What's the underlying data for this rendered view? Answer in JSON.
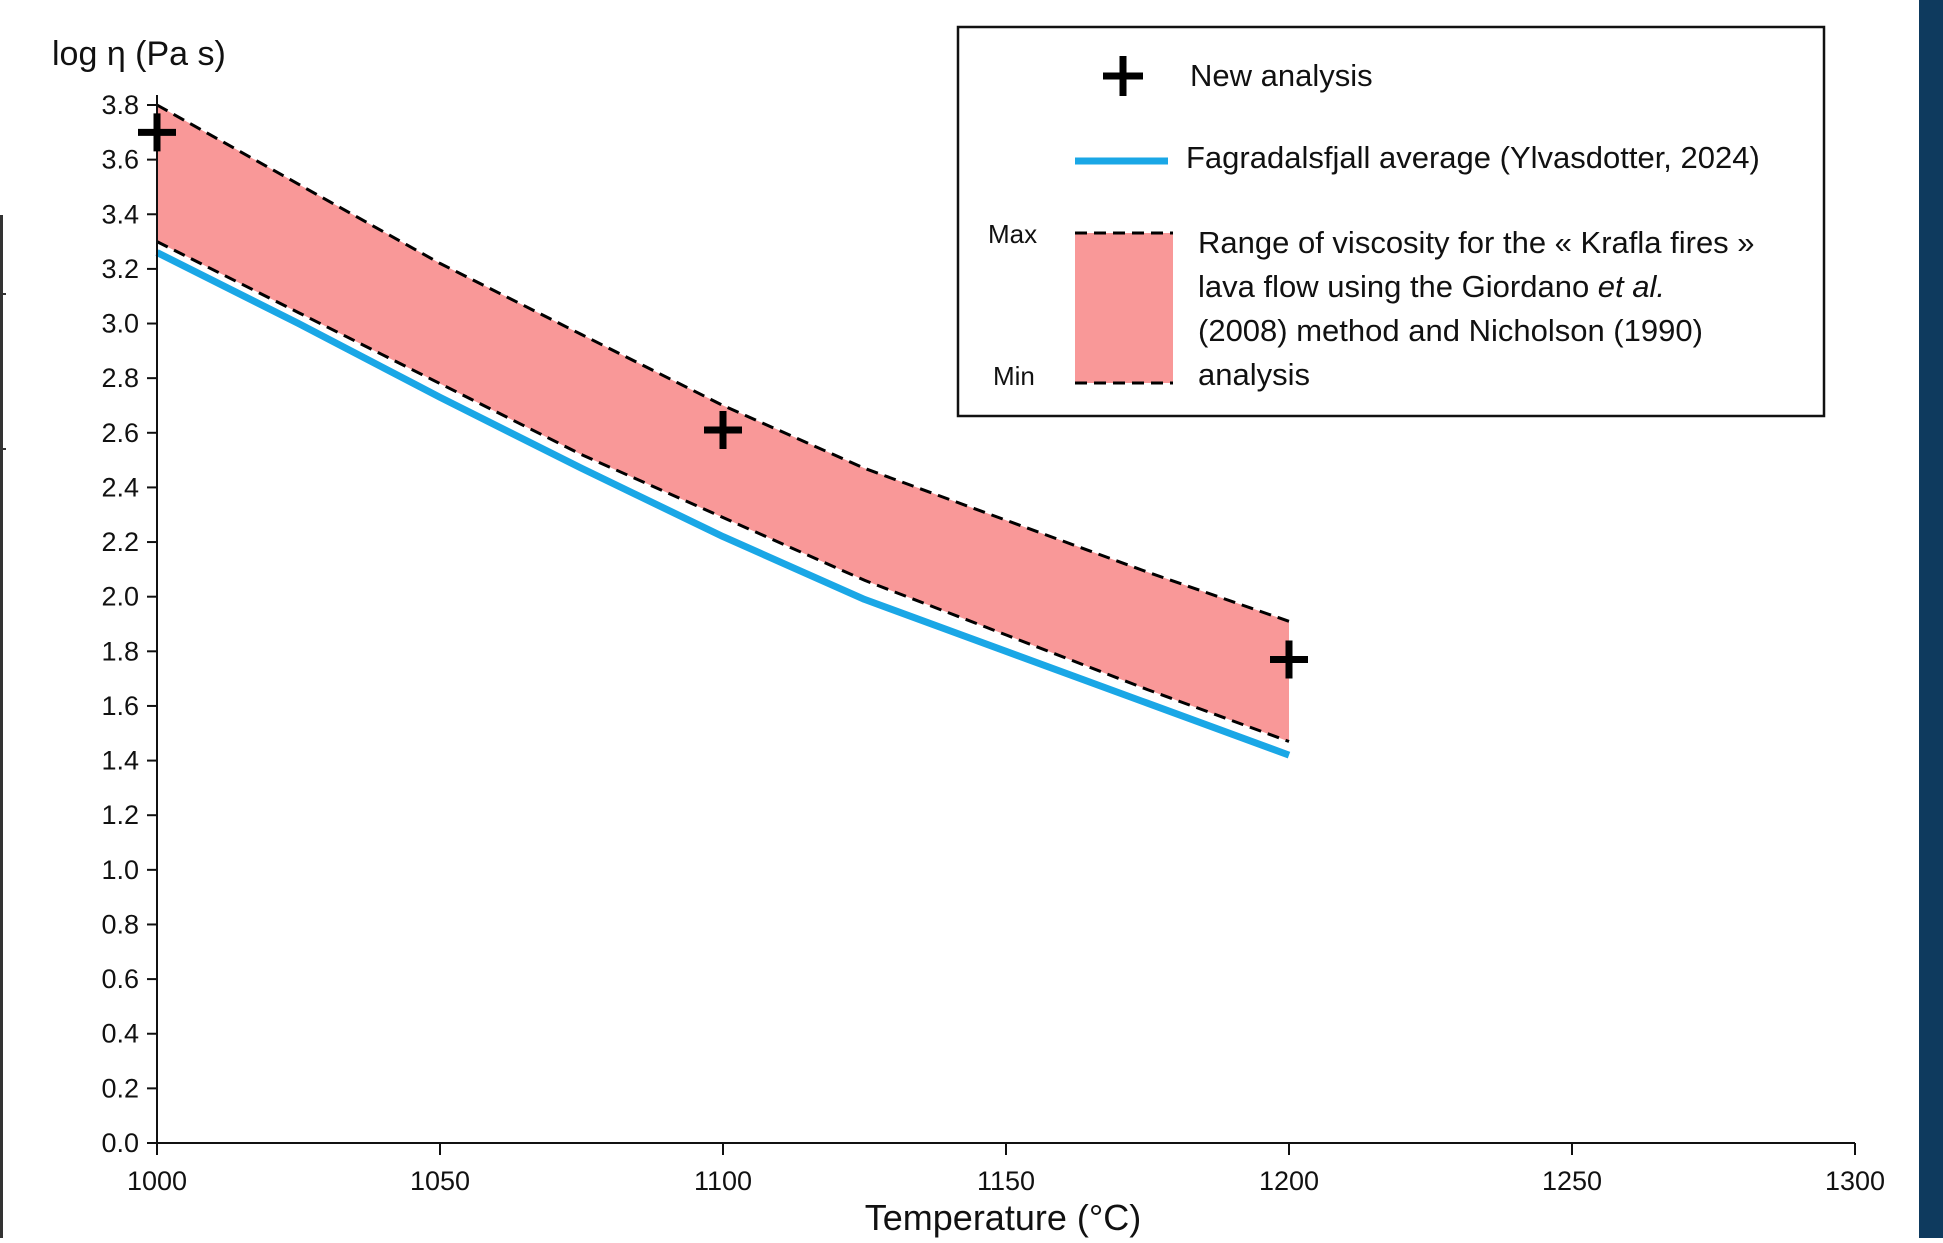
{
  "chart_data": {
    "type": "line",
    "ylabel": "log η (Pa s)",
    "xlabel": "Temperature (°C)",
    "xlim": [
      1000,
      1300
    ],
    "ylim": [
      0,
      3.8
    ],
    "x_ticks": [
      1000,
      1050,
      1100,
      1150,
      1200,
      1250,
      1300
    ],
    "y_ticks": [
      0.0,
      0.2,
      0.4,
      0.6,
      0.8,
      1.0,
      1.2,
      1.4,
      1.6,
      1.8,
      2.0,
      2.2,
      2.4,
      2.6,
      2.8,
      3.0,
      3.2,
      3.4,
      3.6,
      3.8
    ],
    "grid": false,
    "legend_position": "top-right",
    "series": [
      {
        "name": "New analysis",
        "kind": "marker",
        "marker": "plus",
        "color": "#000000",
        "points": [
          [
            1000,
            3.7
          ],
          [
            1100,
            2.61
          ],
          [
            1200,
            1.77
          ]
        ]
      },
      {
        "name": "Fagradalsfjall average (Ylvasdotter, 2024)",
        "kind": "line",
        "color": "#1aa7e6",
        "points": [
          [
            1000,
            3.26
          ],
          [
            1025,
            3.0
          ],
          [
            1050,
            2.73
          ],
          [
            1075,
            2.47
          ],
          [
            1100,
            2.22
          ],
          [
            1125,
            1.99
          ],
          [
            1150,
            1.8
          ],
          [
            1175,
            1.61
          ],
          [
            1200,
            1.42
          ]
        ]
      },
      {
        "name": "Range of viscosity",
        "kind": "band",
        "fill": "#f99898",
        "edge_color": "#000000",
        "x": [
          1000,
          1025,
          1050,
          1075,
          1100,
          1125,
          1150,
          1175,
          1200
        ],
        "max": [
          3.8,
          3.51,
          3.22,
          2.96,
          2.7,
          2.47,
          2.28,
          2.09,
          1.91
        ],
        "min": [
          3.3,
          3.04,
          2.78,
          2.52,
          2.29,
          2.06,
          1.86,
          1.66,
          1.47
        ]
      }
    ],
    "legend": {
      "new_analysis": "New analysis",
      "fagradalsfjall": "Fagradalsfjall average (Ylvasdotter, 2024)",
      "range_max": "Max",
      "range_min": "Min",
      "range_line1": "Range of viscosity for the « Krafla fires »",
      "range_line2_pre": "lava flow using the Giordano ",
      "range_line2_em": "et al.",
      "range_line3": "(2008) method and Nicholson (1990)",
      "range_line4": "analysis"
    }
  }
}
